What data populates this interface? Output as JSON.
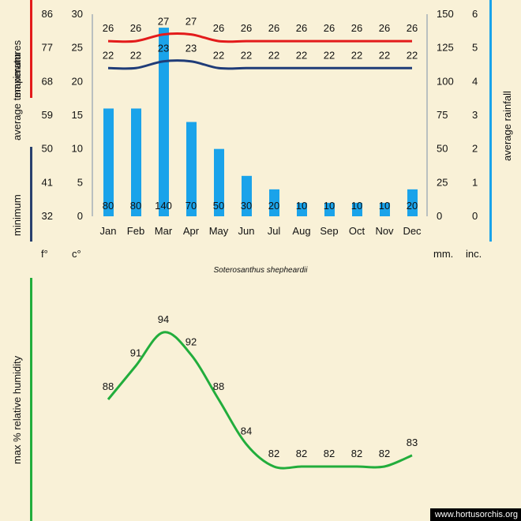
{
  "chart_data": [
    {
      "type": "bar+line",
      "title": "Soterosanthus shepheardii",
      "categories": [
        "Jan",
        "Feb",
        "Mar",
        "Apr",
        "May",
        "Jun",
        "Jul",
        "Aug",
        "Sep",
        "Oct",
        "Nov",
        "Dec"
      ],
      "series": [
        {
          "name": "maximum average temperature (C)",
          "color": "#e31b1b",
          "values": [
            26,
            26,
            27,
            27,
            26,
            26,
            26,
            26,
            26,
            26,
            26,
            26
          ]
        },
        {
          "name": "minimum average temperature (C)",
          "color": "#1f3c78",
          "values": [
            22,
            22,
            23,
            23,
            22,
            22,
            22,
            22,
            22,
            22,
            22,
            22
          ]
        },
        {
          "name": "average rainfall (mm)",
          "color": "#1aa3ea",
          "values": [
            80,
            80,
            140,
            70,
            50,
            30,
            20,
            10,
            10,
            10,
            10,
            20
          ]
        }
      ],
      "axes": {
        "fahrenheit": {
          "unit": "f°",
          "ticks": [
            "86",
            "77",
            "68",
            "59",
            "50",
            "41",
            "32"
          ]
        },
        "celsius": {
          "unit": "c°",
          "range": [
            0,
            30
          ],
          "ticks": [
            "30",
            "25",
            "20",
            "15",
            "10",
            "5",
            "0"
          ]
        },
        "rain_mm": {
          "unit": "mm.",
          "range": [
            0,
            150
          ],
          "ticks": [
            "150",
            "125",
            "100",
            "75",
            "50",
            "25",
            "0"
          ]
        },
        "rain_inch": {
          "unit": "inc.",
          "ticks": [
            "6",
            "5",
            "4",
            "3",
            "2",
            "1",
            "0"
          ]
        }
      },
      "labels": {
        "left_max": "maximum",
        "left_avg": "average temperatures",
        "left_min": "minimum",
        "right": "average rainfall"
      }
    },
    {
      "type": "line",
      "categories": [
        "Jan",
        "Feb",
        "Mar",
        "Apr",
        "May",
        "Jun",
        "Jul",
        "Aug",
        "Sep",
        "Oct",
        "Nov",
        "Dec"
      ],
      "series": [
        {
          "name": "max % relative humidity",
          "color": "#22ad3c",
          "values": [
            88,
            91,
            94,
            92,
            88,
            84,
            82,
            82,
            82,
            82,
            82,
            83
          ]
        }
      ],
      "ylabel": "max %  relative humidity",
      "ylim": [
        80,
        95
      ]
    }
  ],
  "colors": {
    "background": "#f9f1d7",
    "bar": "#1aa3ea",
    "max_line": "#e31b1b",
    "min_line": "#1f3c78",
    "humidity": "#22ad3c",
    "axis_dark": "#28406e"
  },
  "credit": "www.hortusorchis.org"
}
